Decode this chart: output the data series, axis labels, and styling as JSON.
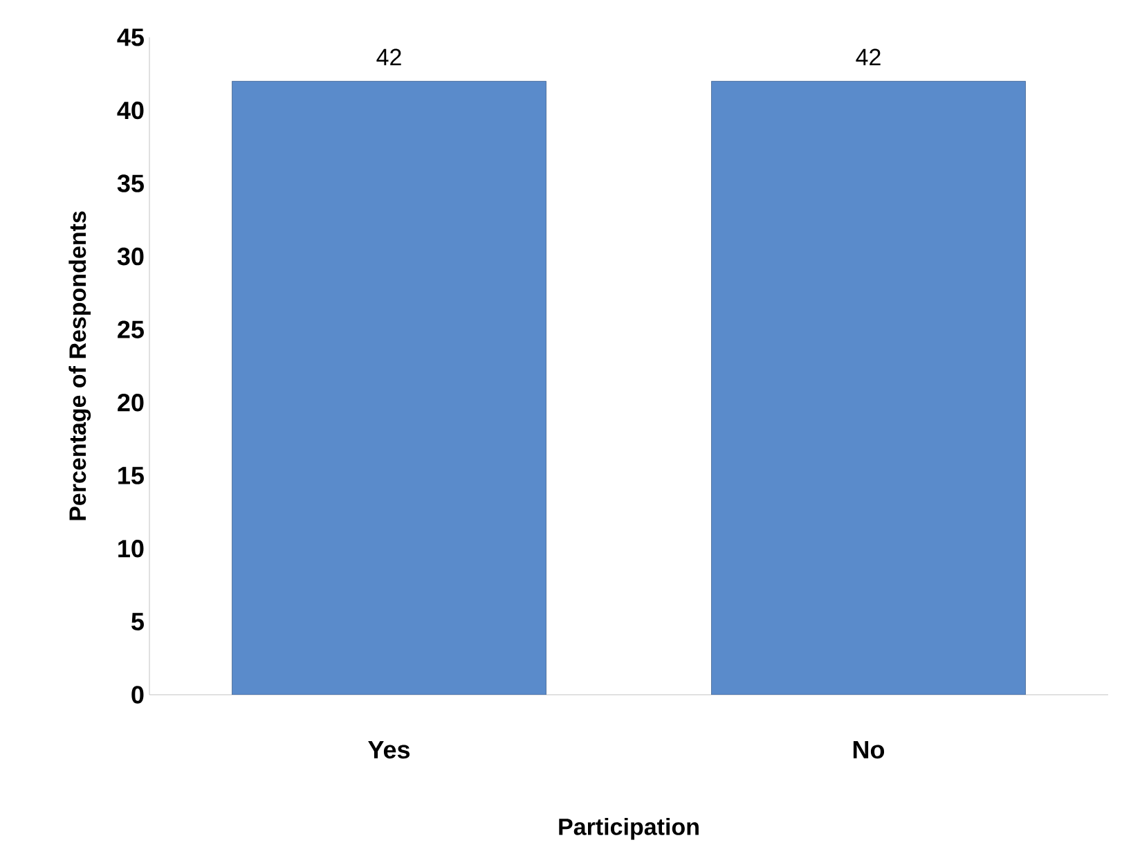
{
  "chart_data": {
    "type": "bar",
    "xlabel": "Participation",
    "ylabel": "Percentage of Respondents",
    "categories": [
      "Yes",
      "No"
    ],
    "values": [
      42,
      42
    ],
    "color": "#5a8bcb",
    "ylim": [
      0,
      45
    ],
    "yticks": [
      0,
      5,
      10,
      15,
      20,
      25,
      30,
      35,
      40,
      45
    ],
    "data_labels": true,
    "grid": false
  }
}
